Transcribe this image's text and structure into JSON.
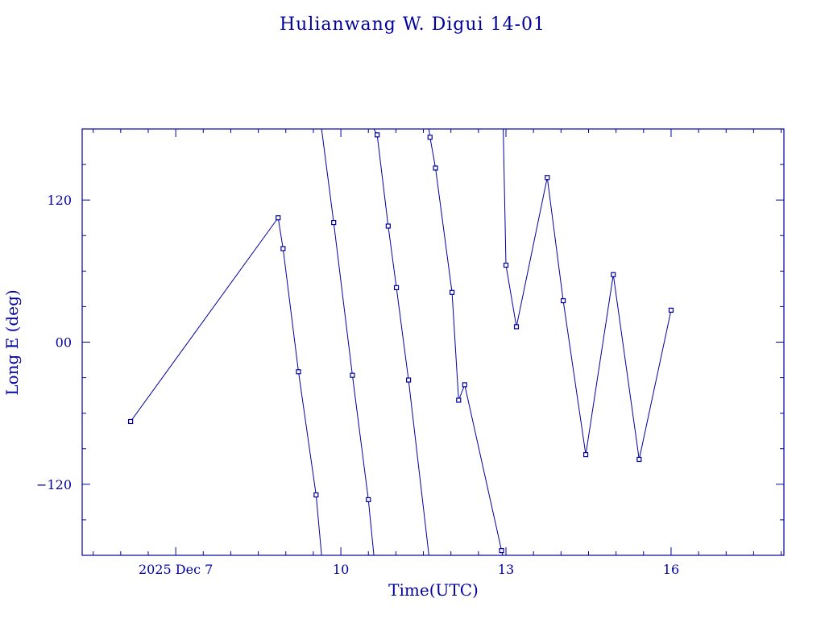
{
  "chart_data": {
    "type": "line",
    "title": "Hulianwang W. Digui 14-01",
    "xlabel": "Time(UTC)",
    "ylabel": "Long E (deg)",
    "x_unit": "days (2025 Dec)",
    "xlim": [
      5.3,
      18.05
    ],
    "ylim": [
      -180,
      180
    ],
    "x_major_ticks": [
      {
        "value": 7,
        "label": "2025 Dec  7"
      },
      {
        "value": 10,
        "label": "10"
      },
      {
        "value": 13,
        "label": "13"
      },
      {
        "value": 16,
        "label": "16"
      }
    ],
    "y_major_ticks": [
      {
        "value": 120,
        "label": "120"
      },
      {
        "value": 0,
        "label": "00"
      },
      {
        "value": -120,
        "label": "−120"
      }
    ],
    "x_minor_step": 0.5,
    "y_minor_step": 30,
    "grid": false,
    "color": "#0000a0",
    "segments": [
      [
        [
          6.18,
          -67
        ],
        [
          8.86,
          105
        ],
        [
          8.95,
          79
        ],
        [
          9.23,
          -25
        ],
        [
          9.55,
          -129
        ],
        [
          9.65,
          -180
        ]
      ],
      [
        [
          9.65,
          180
        ],
        [
          9.87,
          101
        ],
        [
          10.21,
          -28
        ],
        [
          10.5,
          -133
        ],
        [
          10.6,
          -180
        ]
      ],
      [
        [
          10.6,
          180
        ],
        [
          10.66,
          175
        ],
        [
          10.86,
          98
        ],
        [
          11.01,
          46
        ],
        [
          11.23,
          -32
        ],
        [
          11.6,
          -180
        ]
      ],
      [
        [
          11.6,
          180
        ],
        [
          11.62,
          173
        ],
        [
          11.72,
          147
        ],
        [
          12.02,
          42
        ],
        [
          12.14,
          -49
        ],
        [
          12.25,
          -36
        ],
        [
          12.92,
          -176
        ],
        [
          12.94,
          -180
        ]
      ],
      [
        [
          12.94,
          180
        ],
        [
          12.95,
          180
        ],
        [
          13.0,
          65
        ],
        [
          13.19,
          13
        ],
        [
          13.75,
          139
        ],
        [
          14.04,
          35
        ],
        [
          14.45,
          -95
        ],
        [
          14.95,
          57
        ],
        [
          15.42,
          -99
        ],
        [
          16.0,
          27
        ]
      ]
    ]
  }
}
